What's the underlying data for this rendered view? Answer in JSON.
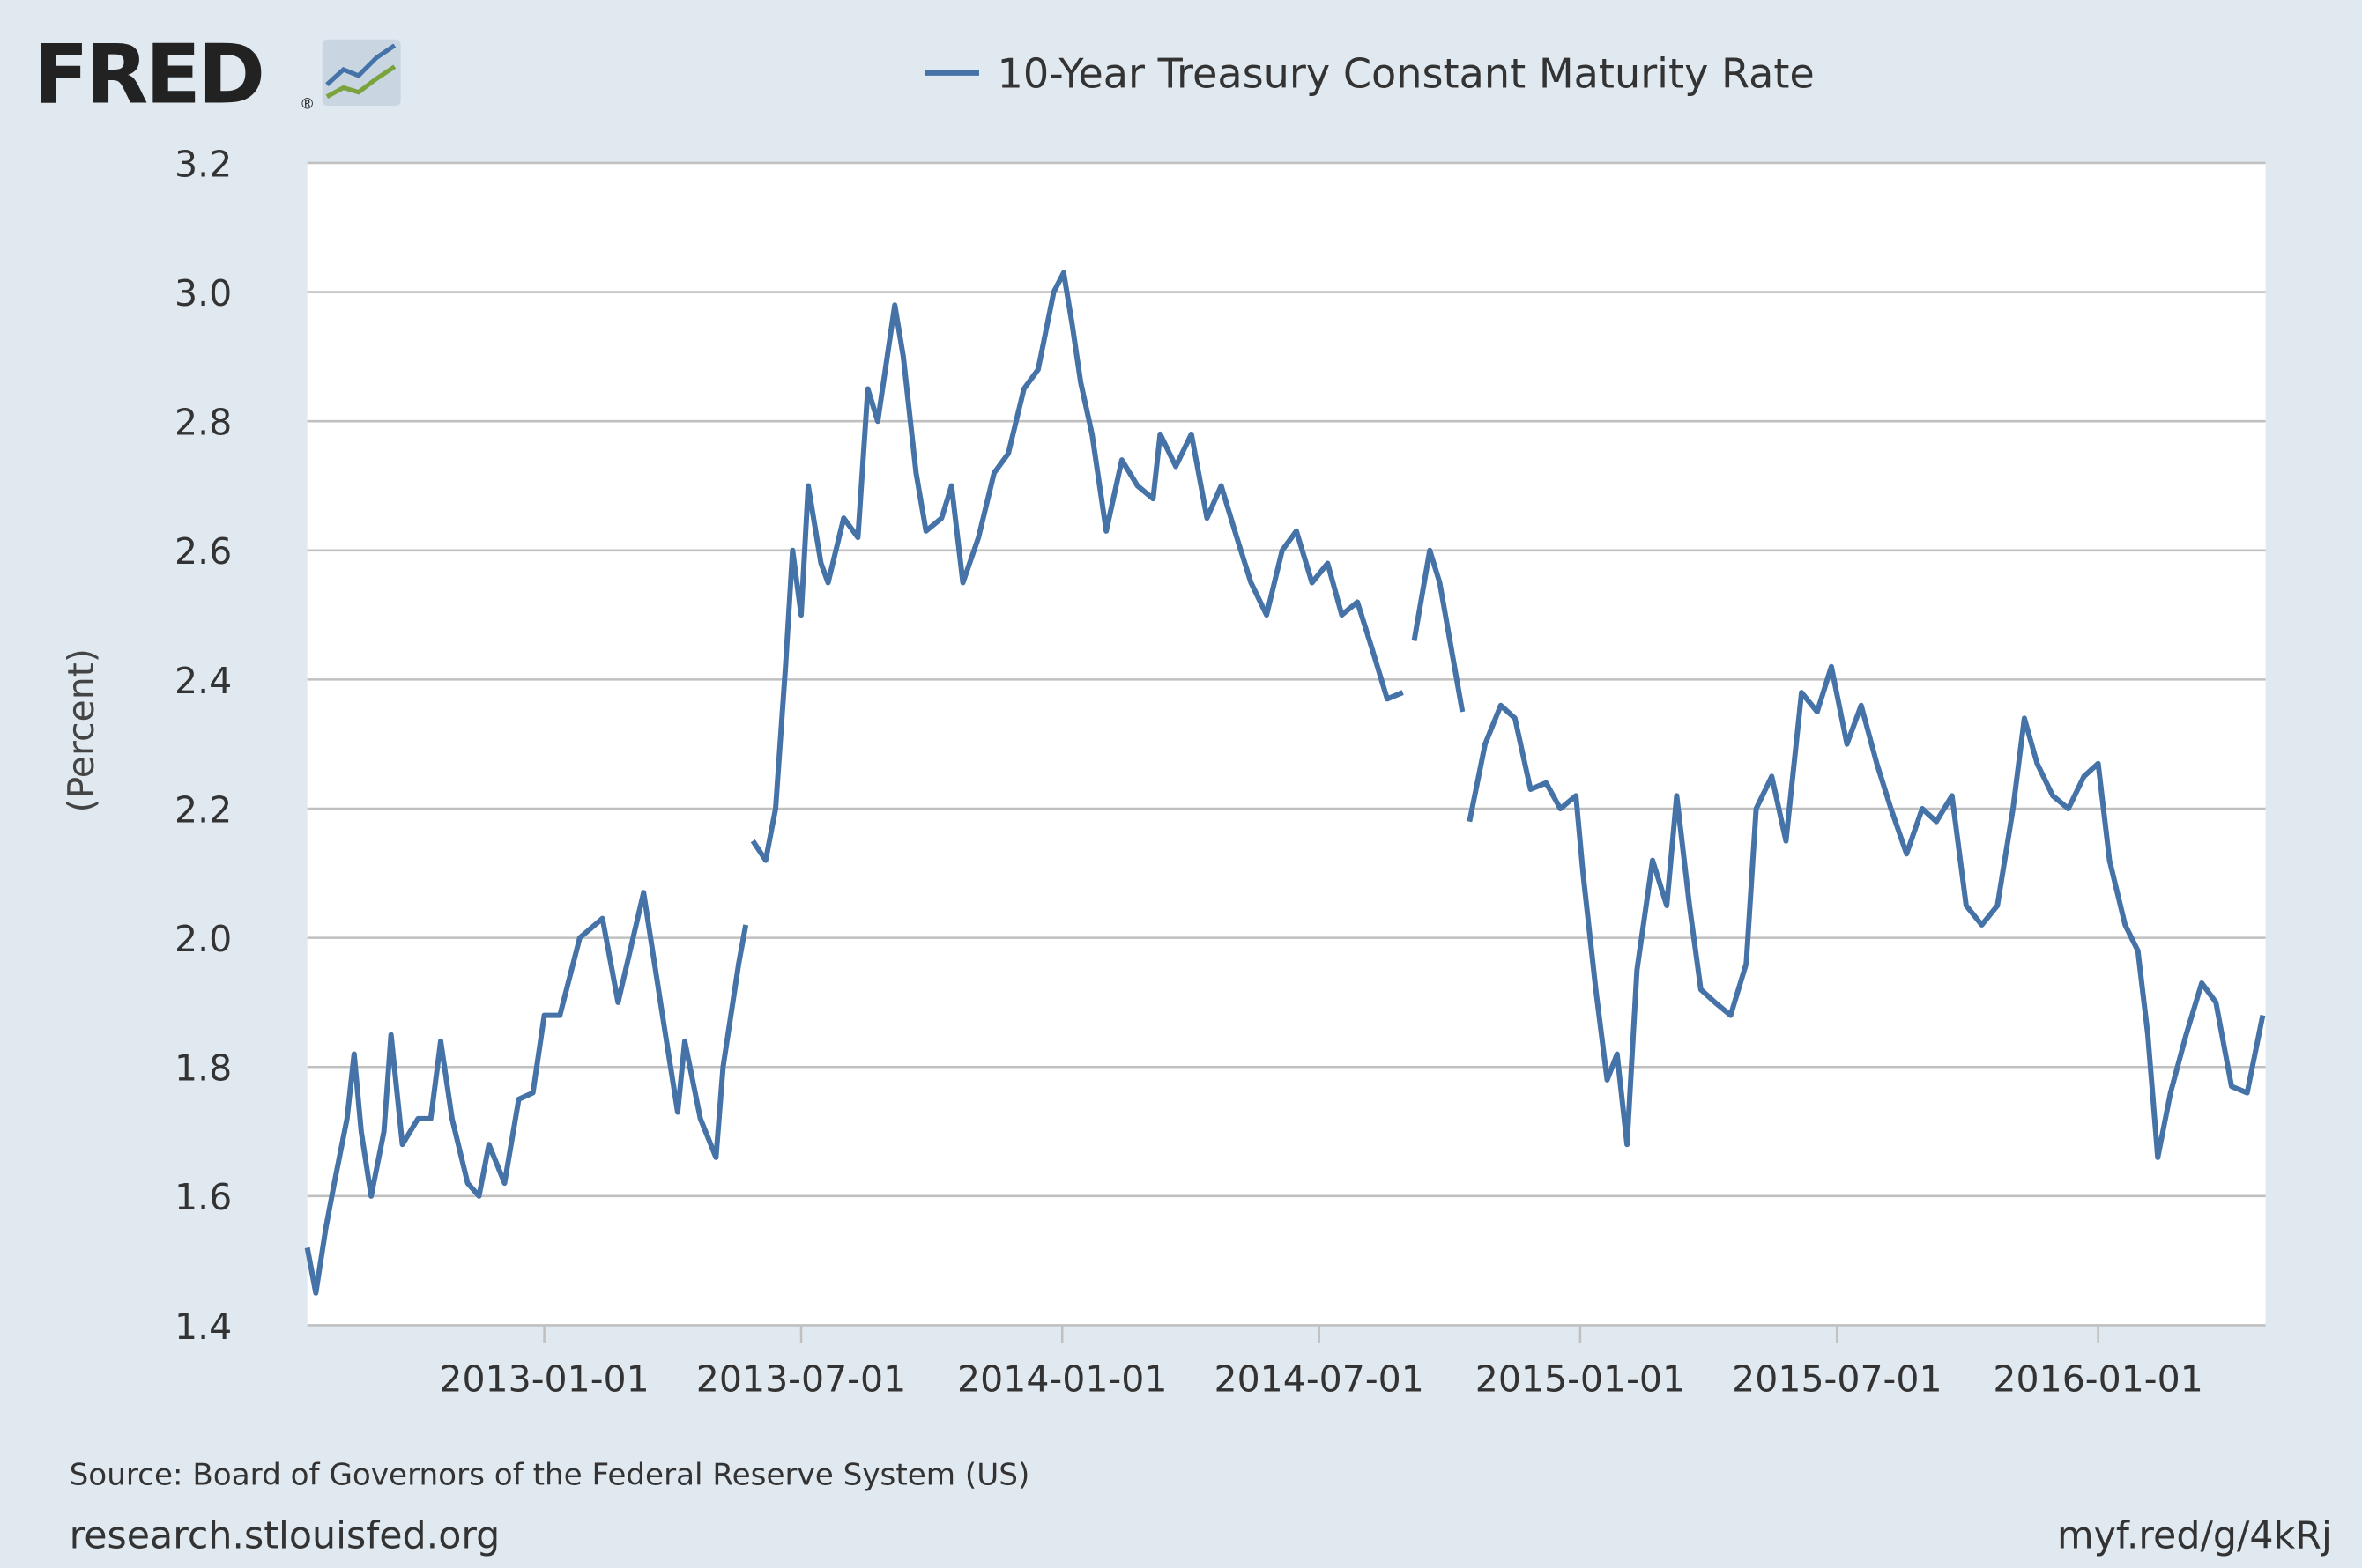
{
  "chart_data": {
    "type": "line",
    "logo": "FRED",
    "logo_mark": "®",
    "ylabel": "(Percent)",
    "source": "Source: Board of Governors of the Federal Reserve System (US)",
    "footer_left": "research.stlouisfed.org",
    "footer_right": "myf.red/g/4kRj",
    "grid": true,
    "legend": "top",
    "xlim": [
      "2012-07-18",
      "2016-04-28"
    ],
    "ylim": [
      1.4,
      3.2
    ],
    "yticks": [
      1.4,
      1.6,
      1.8,
      {
        "value": 2.0,
        "label": "2.0"
      },
      2.2,
      2.4,
      2.6,
      2.8,
      {
        "value": 3.0,
        "label": "3.0"
      },
      3.2
    ],
    "xticks": [
      "2013-01-01",
      "2013-07-01",
      "2014-01-01",
      "2014-07-01",
      "2015-01-01",
      "2015-07-01",
      "2016-01-01"
    ],
    "x": [
      "2012-07-18",
      "2012-07-24",
      "2012-07-31",
      "2012-08-06",
      "2012-08-15",
      "2012-08-20",
      "2012-08-25",
      "2012-09-01",
      "2012-09-10",
      "2012-09-15",
      "2012-09-23",
      "2012-10-04",
      "2012-10-13",
      "2012-10-20",
      "2012-10-28",
      "2012-11-08",
      "2012-11-16",
      "2012-11-23",
      "2012-12-04",
      "2012-12-14",
      "2012-12-24",
      "2013-01-01",
      "2013-01-12",
      "2013-01-26",
      "2013-02-11",
      "2013-02-22",
      "2013-03-12",
      "2013-03-26",
      "2013-04-05",
      "2013-04-10",
      "2013-04-21",
      "2013-05-02",
      "2013-05-07",
      "2013-05-18",
      "2013-05-23",
      "2013-05-25",
      "2013-05-28",
      "2013-06-06",
      "2013-06-13",
      "2013-06-20",
      "2013-06-25",
      "2013-07-01",
      "2013-07-06",
      "2013-07-15",
      "2013-07-20",
      "2013-07-31",
      "2013-08-10",
      "2013-08-17",
      "2013-08-24",
      "2013-09-05",
      "2013-09-11",
      "2013-09-20",
      "2013-09-27",
      "2013-10-08",
      "2013-10-15",
      "2013-10-23",
      "2013-11-03",
      "2013-11-14",
      "2013-11-24",
      "2013-12-05",
      "2013-12-15",
      "2013-12-26",
      "2014-01-02",
      "2014-01-08",
      "2014-01-14",
      "2014-01-22",
      "2014-02-01",
      "2014-02-12",
      "2014-02-23",
      "2014-03-06",
      "2014-03-11",
      "2014-03-22",
      "2014-04-02",
      "2014-04-13",
      "2014-04-23",
      "2014-05-04",
      "2014-05-14",
      "2014-05-25",
      "2014-06-05",
      "2014-06-15",
      "2014-06-26",
      "2014-07-07",
      "2014-07-17",
      "2014-07-28",
      "2014-08-07",
      "2014-08-18",
      "2014-08-29",
      "2014-09-02",
      "2014-09-06",
      "2014-09-17",
      "2014-09-24",
      "2014-10-02",
      "2014-10-10",
      "2014-10-12",
      "2014-10-15",
      "2014-10-26",
      "2014-11-06",
      "2014-11-16",
      "2014-11-27",
      "2014-12-08",
      "2014-12-18",
      "2014-12-29",
      "2015-01-03",
      "2015-01-12",
      "2015-01-20",
      "2015-01-27",
      "2015-02-03",
      "2015-02-10",
      "2015-02-21",
      "2015-03-03",
      "2015-03-10",
      "2015-03-19",
      "2015-03-27",
      "2015-04-06",
      "2015-04-17",
      "2015-04-28",
      "2015-05-05",
      "2015-05-16",
      "2015-05-26",
      "2015-06-06",
      "2015-06-17",
      "2015-06-27",
      "2015-07-08",
      "2015-07-18",
      "2015-07-29",
      "2015-08-08",
      "2015-08-19",
      "2015-08-30",
      "2015-09-09",
      "2015-09-20",
      "2015-09-30",
      "2015-10-11",
      "2015-10-22",
      "2015-11-02",
      "2015-11-10",
      "2015-11-19",
      "2015-11-30",
      "2015-12-11",
      "2015-12-22",
      "2016-01-01",
      "2016-01-09",
      "2016-01-20",
      "2016-01-29",
      "2016-02-05",
      "2016-02-12",
      "2016-02-21",
      "2016-03-03",
      "2016-03-14",
      "2016-03-24",
      "2016-04-04",
      "2016-04-15",
      "2016-04-26"
    ],
    "series": [
      {
        "name": "10-Year Treasury Constant Maturity Rate",
        "color": "#4572a7",
        "values": [
          1.52,
          1.45,
          1.55,
          1.62,
          1.72,
          1.82,
          1.7,
          1.6,
          1.7,
          1.85,
          1.68,
          1.72,
          1.72,
          1.84,
          1.72,
          1.62,
          1.6,
          1.68,
          1.62,
          1.75,
          1.76,
          1.88,
          1.88,
          2.0,
          2.03,
          1.9,
          2.07,
          1.87,
          1.73,
          1.84,
          1.72,
          1.66,
          1.8,
          1.96,
          2.02,
          null,
          2.15,
          2.12,
          2.2,
          2.42,
          2.6,
          2.5,
          2.7,
          2.58,
          2.55,
          2.65,
          2.62,
          2.85,
          2.8,
          2.98,
          2.9,
          2.72,
          2.63,
          2.65,
          2.7,
          2.55,
          2.62,
          2.72,
          2.75,
          2.85,
          2.88,
          3.0,
          3.03,
          2.95,
          2.86,
          2.78,
          2.63,
          2.74,
          2.7,
          2.68,
          2.78,
          2.73,
          2.78,
          2.65,
          2.7,
          2.62,
          2.55,
          2.5,
          2.6,
          2.63,
          2.55,
          2.58,
          2.5,
          2.52,
          2.45,
          2.37,
          2.38,
          null,
          2.46,
          2.6,
          2.55,
          2.45,
          2.35,
          null,
          2.18,
          2.3,
          2.36,
          2.34,
          2.23,
          2.24,
          2.2,
          2.22,
          2.1,
          1.92,
          1.78,
          1.82,
          1.68,
          1.95,
          2.12,
          2.05,
          2.22,
          2.05,
          1.92,
          1.9,
          1.88,
          1.96,
          2.2,
          2.25,
          2.15,
          2.38,
          2.35,
          2.42,
          2.3,
          2.36,
          2.27,
          2.2,
          2.13,
          2.2,
          2.18,
          2.22,
          2.05,
          2.02,
          2.05,
          2.2,
          2.34,
          2.27,
          2.22,
          2.2,
          2.25,
          2.27,
          2.12,
          2.02,
          1.98,
          1.85,
          1.66,
          1.76,
          1.85,
          1.93,
          1.9,
          1.77,
          1.76,
          1.88
        ]
      }
    ]
  }
}
